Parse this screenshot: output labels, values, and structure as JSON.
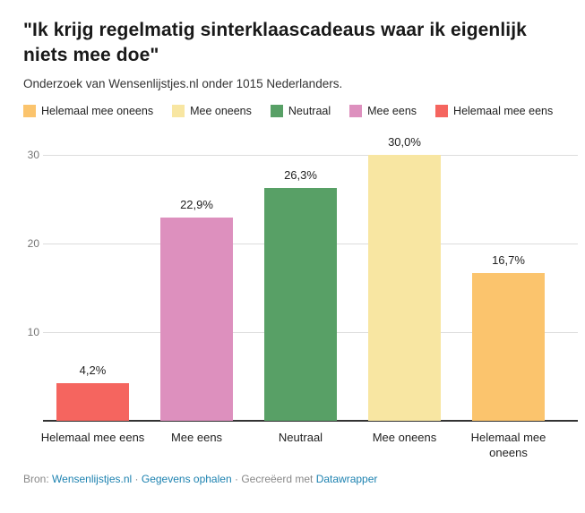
{
  "header": {
    "title": "\"Ik krijg regelmatig sinterklaascadeaus waar ik eigenlijk niets mee doe\"",
    "subtitle": "Onderzoek van Wensenlijstjes.nl onder 1015 Nederlanders."
  },
  "legend": {
    "items": [
      {
        "label": "Helemaal mee oneens",
        "color": "#FBC46D"
      },
      {
        "label": "Mee oneens",
        "color": "#F8E6A2"
      },
      {
        "label": "Neutraal",
        "color": "#58A066"
      },
      {
        "label": "Mee eens",
        "color": "#DD90BE"
      },
      {
        "label": "Helemaal mee eens",
        "color": "#F5655F"
      }
    ]
  },
  "chart_data": {
    "type": "bar",
    "title": "\"Ik krijg regelmatig sinterklaascadeaus waar ik eigenlijk niets mee doe\"",
    "subtitle": "Onderzoek van Wensenlijstjes.nl onder 1015 Nederlanders.",
    "categories": [
      "Helemaal mee eens",
      "Mee eens",
      "Neutraal",
      "Mee oneens",
      "Helemaal mee oneens"
    ],
    "values": [
      4.2,
      22.9,
      26.3,
      30.0,
      16.7
    ],
    "value_labels": [
      "4,2%",
      "22,9%",
      "26,3%",
      "30,0%",
      "16,7%"
    ],
    "bar_colors": [
      "#F5655F",
      "#DD90BE",
      "#58A066",
      "#F8E6A2",
      "#FBC46D"
    ],
    "y_ticks": [
      10,
      20,
      30
    ],
    "ylim": [
      0,
      30
    ],
    "xlabel": "",
    "ylabel": "",
    "grid": "horizontal",
    "legend_position": "top",
    "unit": "%"
  },
  "footer": {
    "source_label": "Bron:",
    "source_link": "Wensenlijstjes.nl",
    "separator1": "·",
    "data_link": "Gegevens ophalen",
    "separator2": "·",
    "created_label": "Gecreëerd met",
    "created_link": "Datawrapper",
    "link_color": "#1D82B0"
  }
}
